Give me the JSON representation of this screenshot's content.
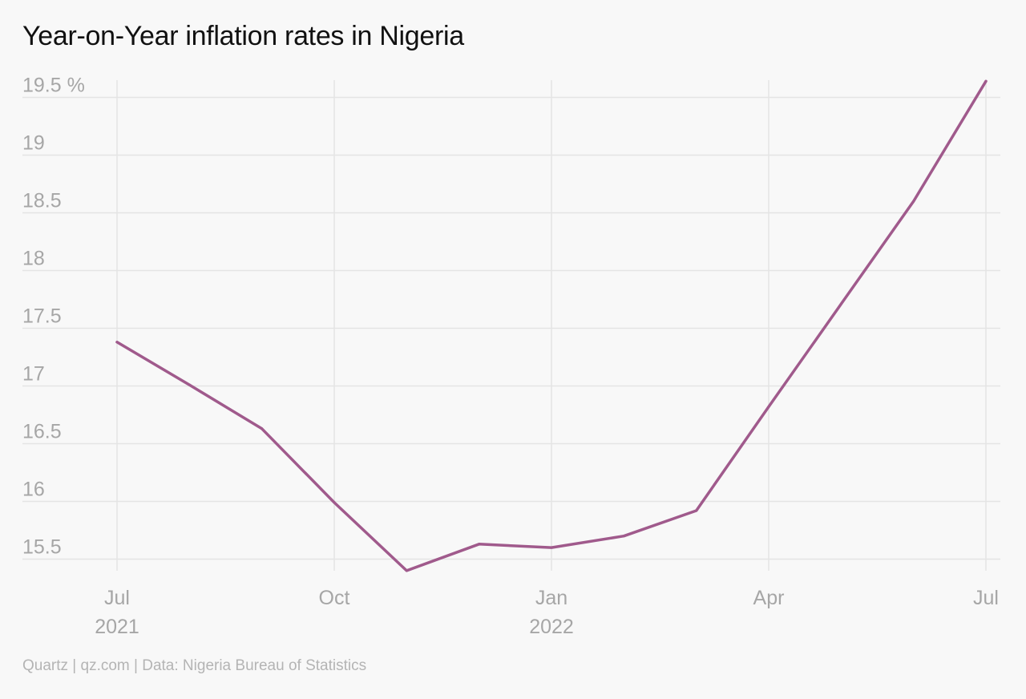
{
  "chart_data": {
    "type": "line",
    "title": "Year-on-Year inflation rates in Nigeria",
    "xlabel": "",
    "ylabel": "",
    "ylim": [
      15.3,
      19.65
    ],
    "y_ticks": [
      15.5,
      16,
      16.5,
      17,
      17.5,
      18,
      18.5,
      19,
      19.5
    ],
    "y_tick_labels": [
      "15.5",
      "16",
      "16.5",
      "17",
      "17.5",
      "18",
      "18.5",
      "19",
      "19.5 %"
    ],
    "x_ticks": [
      {
        "x": "2021-07",
        "label": "Jul",
        "sublabel": "2021"
      },
      {
        "x": "2021-10",
        "label": "Oct",
        "sublabel": ""
      },
      {
        "x": "2022-01",
        "label": "Jan",
        "sublabel": "2022"
      },
      {
        "x": "2022-04",
        "label": "Apr",
        "sublabel": ""
      },
      {
        "x": "2022-07",
        "label": "Jul",
        "sublabel": ""
      }
    ],
    "grid": true,
    "series": [
      {
        "color": "#a05a8c",
        "points": [
          {
            "x": "2021-07",
            "y": 17.38
          },
          {
            "x": "2021-08",
            "y": 17.01
          },
          {
            "x": "2021-09",
            "y": 16.63
          },
          {
            "x": "2021-10",
            "y": 15.99
          },
          {
            "x": "2021-11",
            "y": 15.4
          },
          {
            "x": "2021-12",
            "y": 15.63
          },
          {
            "x": "2022-01",
            "y": 15.6
          },
          {
            "x": "2022-02",
            "y": 15.7
          },
          {
            "x": "2022-03",
            "y": 15.92
          },
          {
            "x": "2022-04",
            "y": 16.82
          },
          {
            "x": "2022-05",
            "y": 17.71
          },
          {
            "x": "2022-06",
            "y": 18.6
          },
          {
            "x": "2022-07",
            "y": 19.64
          }
        ]
      }
    ],
    "source": "Quartz | qz.com | Data: Nigeria Bureau of Statistics"
  },
  "colors": {
    "background": "#f8f8f8",
    "grid": "#e4e4e4",
    "tick_label": "#a6a6a6",
    "line": "#a05a8c"
  }
}
